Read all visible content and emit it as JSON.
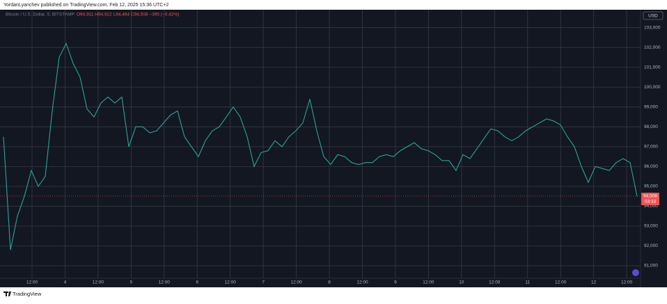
{
  "header": {
    "text": "YordanLyanchev published on TradingView.com, Feb 12, 2025 15:36 UTC+2"
  },
  "footer": {
    "brand": "TradingView"
  },
  "chart_data": {
    "type": "line",
    "title": "Bitcoin / U.S. Dollar, 5, BITSTAMP",
    "ohlc": "O94,911 H94,922 L94,464 C94,508 −395 (−0.42%)",
    "currency": "USD",
    "last_price": {
      "value": 94508,
      "label": "94,508",
      "countdown": "03:33"
    },
    "xticks": [
      "12:00",
      "4",
      "12:00",
      "5",
      "12:00",
      "6",
      "12:00",
      "7",
      "12:00",
      "8",
      "12:00",
      "9",
      "12:00",
      "10",
      "12:00",
      "11",
      "12:00",
      "12",
      "12:00"
    ],
    "ylim": [
      90370,
      103900
    ],
    "yticks": [
      {
        "value": 91000,
        "label": "91,000"
      },
      {
        "value": 92000,
        "label": "92,000"
      },
      {
        "value": 93000,
        "label": "93,000"
      },
      {
        "value": 94000,
        "label": "94,000"
      },
      {
        "value": 95000,
        "label": "95,000"
      },
      {
        "value": 96000,
        "label": "96,000"
      },
      {
        "value": 97000,
        "label": "97,000"
      },
      {
        "value": 98000,
        "label": "98,000"
      },
      {
        "value": 99000,
        "label": "99,000"
      },
      {
        "value": 100000,
        "label": "100,000"
      },
      {
        "value": 101000,
        "label": "101,000"
      },
      {
        "value": 102000,
        "label": "102,000"
      },
      {
        "value": 103000,
        "label": "103,000"
      }
    ],
    "grid": true,
    "series": [
      {
        "name": "BTCUSD",
        "color": "#26a69a",
        "values": [
          97500,
          91800,
          93500,
          94500,
          95800,
          95000,
          95500,
          98800,
          101500,
          102200,
          101200,
          100500,
          98900,
          98500,
          99200,
          99500,
          99200,
          99500,
          97000,
          98000,
          98000,
          97700,
          97800,
          98200,
          98600,
          98800,
          97500,
          97000,
          96500,
          97300,
          97800,
          98000,
          98500,
          99000,
          98500,
          97500,
          96000,
          96700,
          96800,
          97300,
          97000,
          97500,
          97800,
          98200,
          99400,
          97800,
          96500,
          96100,
          96600,
          96500,
          96200,
          96100,
          96200,
          96200,
          96500,
          96600,
          96500,
          96800,
          97000,
          97200,
          96900,
          96800,
          96600,
          96300,
          96300,
          95800,
          96600,
          96400,
          96900,
          97400,
          97900,
          97800,
          97500,
          97300,
          97500,
          97800,
          98000,
          98200,
          98400,
          98300,
          98100,
          97500,
          97000,
          96000,
          95200,
          96000,
          95900,
          95800,
          96200,
          96400,
          96200,
          94500
        ]
      }
    ]
  }
}
